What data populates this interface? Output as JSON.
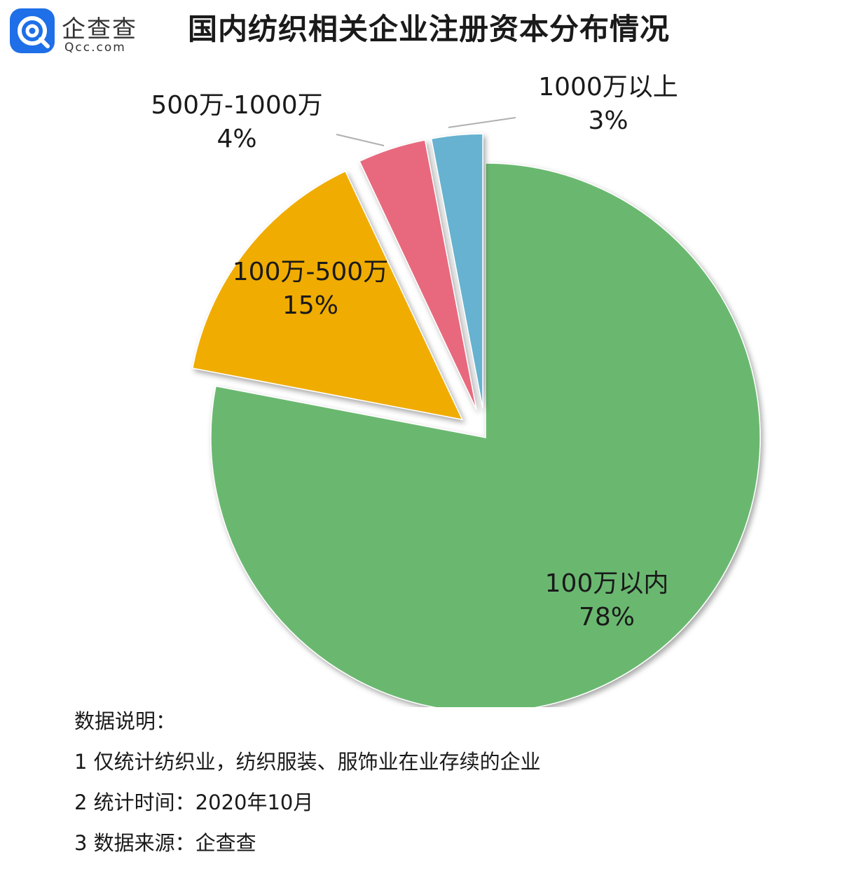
{
  "brand": {
    "name_cn": "企查查",
    "name_en": "Qcc.com",
    "color": "#1E6FE8"
  },
  "title": "国内纺织相关企业注册资本分布情况",
  "chart_data": {
    "type": "pie",
    "slices": [
      {
        "label": "100万以内",
        "value": 78,
        "value_label": "78%",
        "color": "#6BB86F",
        "exploded": false
      },
      {
        "label": "100万-500万",
        "value": 15,
        "value_label": "15%",
        "color": "#F0AC05",
        "exploded": true
      },
      {
        "label": "500万-1000万",
        "value": 4,
        "value_label": "4%",
        "color": "#E8697E",
        "exploded": true
      },
      {
        "label": "1000万以上",
        "value": 3,
        "value_label": "3%",
        "color": "#66B2D0",
        "exploded": true
      }
    ],
    "start_angle": "12 o'clock, clockwise"
  },
  "notes": {
    "heading": "数据说明：",
    "items": [
      "1 仅统计纺织业，纺织服装、服饰业在业存续的企业",
      "2 统计时间：2020年10月",
      "3 数据来源：企查查"
    ]
  }
}
